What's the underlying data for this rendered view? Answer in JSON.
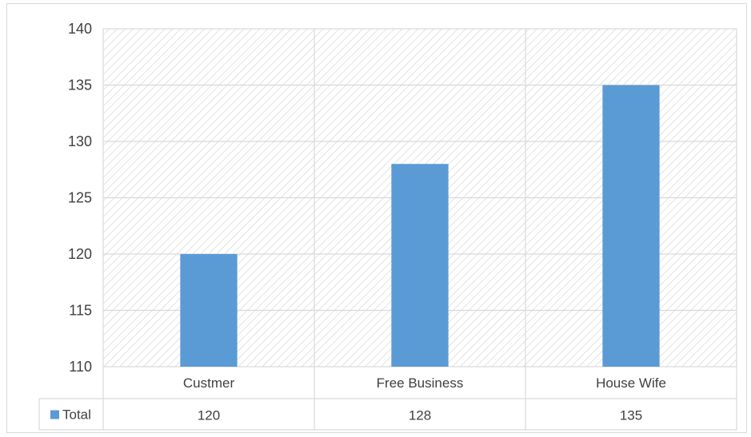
{
  "chart_data": {
    "type": "bar",
    "categories": [
      "Custmer",
      "Free Business",
      "House Wife"
    ],
    "series": [
      {
        "name": "Total",
        "values": [
          120,
          128,
          135
        ],
        "color": "#5b9bd5"
      }
    ],
    "title": "",
    "xlabel": "",
    "ylabel": "",
    "ylim": [
      110,
      140
    ],
    "yticks": [
      110,
      115,
      120,
      125,
      130,
      135,
      140
    ],
    "grid": true,
    "plot_fill": "diagonal-hatch",
    "data_table": true,
    "legend_placement": "data-table-left"
  },
  "colors": {
    "bar": "#5b9bd5",
    "grid": "#d9d9d9",
    "hatch": "#d6d6d6",
    "text": "#404040"
  }
}
